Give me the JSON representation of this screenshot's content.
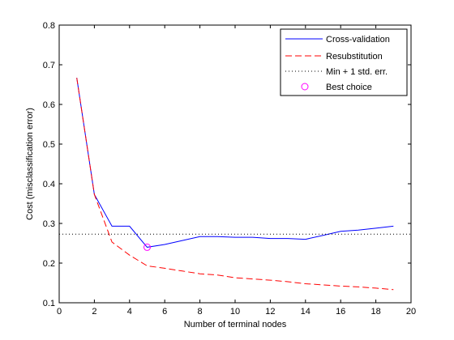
{
  "chart_data": {
    "type": "line",
    "xlabel": "Number of terminal nodes",
    "ylabel": "Cost (misclassification error)",
    "xlim": [
      0,
      20
    ],
    "ylim": [
      0.1,
      0.8
    ],
    "xticks": [
      0,
      2,
      4,
      6,
      8,
      10,
      12,
      14,
      16,
      18,
      20
    ],
    "yticks": [
      0.1,
      0.2,
      0.3,
      0.4,
      0.5,
      0.6,
      0.7,
      0.8
    ],
    "xtick_labels": [
      "0",
      "2",
      "4",
      "6",
      "8",
      "10",
      "12",
      "14",
      "16",
      "18",
      "20"
    ],
    "ytick_labels": [
      "0.1",
      "0.2",
      "0.3",
      "0.4",
      "0.5",
      "0.6",
      "0.7",
      "0.8"
    ],
    "grid": false,
    "legend_position": "top-right",
    "series": [
      {
        "name": "Cross-validation",
        "style": "solid",
        "color": "#0000ff",
        "x": [
          1,
          2,
          3,
          4,
          5,
          6,
          7,
          8,
          9,
          10,
          11,
          12,
          13,
          14,
          15,
          16,
          17,
          18,
          19
        ],
        "y": [
          0.667,
          0.373,
          0.293,
          0.293,
          0.24,
          0.247,
          0.257,
          0.267,
          0.267,
          0.265,
          0.265,
          0.262,
          0.262,
          0.26,
          0.27,
          0.28,
          0.283,
          0.288,
          0.293
        ]
      },
      {
        "name": "Resubstitution",
        "style": "dashed",
        "color": "#ff0000",
        "x": [
          1,
          2,
          3,
          4,
          5,
          6,
          7,
          8,
          9,
          10,
          11,
          12,
          13,
          14,
          15,
          16,
          17,
          18,
          19
        ],
        "y": [
          0.667,
          0.373,
          0.253,
          0.22,
          0.193,
          0.187,
          0.18,
          0.173,
          0.17,
          0.163,
          0.16,
          0.157,
          0.153,
          0.148,
          0.145,
          0.142,
          0.14,
          0.137,
          0.133
        ]
      },
      {
        "name": "Min + 1 std. err.",
        "style": "dotted",
        "color": "#000000",
        "y_constant": 0.273
      },
      {
        "name": "Best choice",
        "style": "marker-circle",
        "color": "#ff00ff",
        "x": [
          5
        ],
        "y": [
          0.24
        ]
      }
    ]
  }
}
